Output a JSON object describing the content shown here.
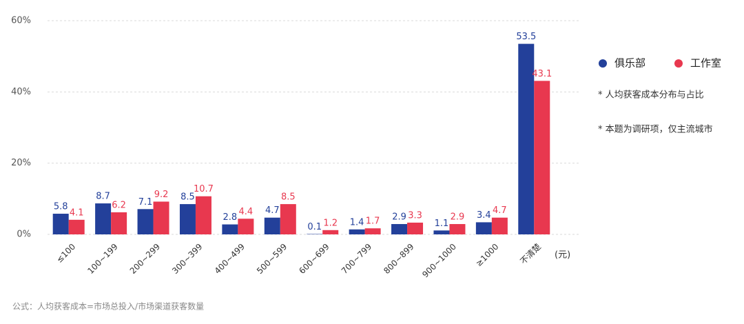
{
  "chart_data": {
    "type": "bar",
    "categories": [
      "≤100",
      "100~199",
      "200~299",
      "300~399",
      "400~499",
      "500~599",
      "600~699",
      "700~799",
      "800~899",
      "900~1000",
      "≥1000",
      "不清楚"
    ],
    "series": [
      {
        "name": "俱乐部",
        "color": "#23409a",
        "values": [
          5.8,
          8.7,
          7.1,
          8.5,
          2.8,
          4.7,
          0.1,
          1.4,
          2.9,
          1.1,
          3.4,
          53.5
        ]
      },
      {
        "name": "工作室",
        "color": "#e8384f",
        "values": [
          4.1,
          6.2,
          9.2,
          10.7,
          4.4,
          8.5,
          1.2,
          1.7,
          3.3,
          2.9,
          4.7,
          43.1
        ]
      }
    ],
    "x_label": "(元)",
    "ylim": [
      0,
      60
    ],
    "yticks": [
      {
        "value": 0,
        "label": "0%"
      },
      {
        "value": 20,
        "label": "20%"
      },
      {
        "value": 40,
        "label": "40%"
      },
      {
        "value": 60,
        "label": "60%"
      }
    ],
    "grid": true,
    "legend": "right",
    "notes": [
      "* 人均获客成本分布与占比",
      "* 本题为调研项，仅主流城市"
    ],
    "footnote": "公式：人均获客成本=市场总投入/市场渠道获客数量"
  }
}
